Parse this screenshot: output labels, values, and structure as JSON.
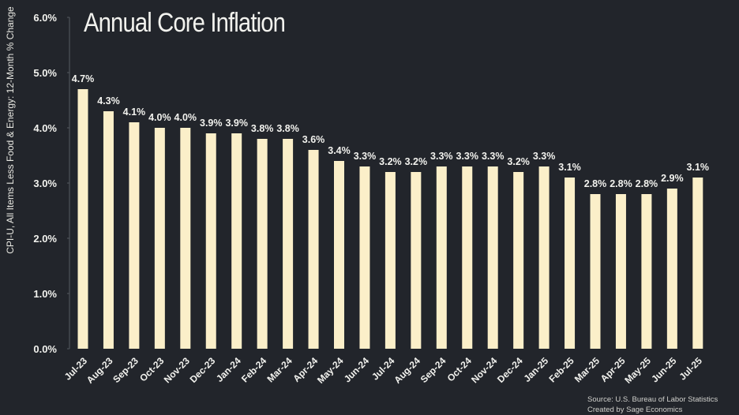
{
  "chart_data": {
    "type": "bar",
    "title": "Annual Core Inflation",
    "ylabel": "CPI-U, All Items Less Food & Energy: 12-Month % Change",
    "xlabel": "",
    "ylim": [
      0,
      6
    ],
    "yticks": [
      "0.0%",
      "1.0%",
      "2.0%",
      "3.0%",
      "4.0%",
      "5.0%",
      "6.0%"
    ],
    "grid": false,
    "categories": [
      "Jul-23",
      "Aug-23",
      "Sep-23",
      "Oct-23",
      "Nov-23",
      "Dec-23",
      "Jan-24",
      "Feb-24",
      "Mar-24",
      "Apr-24",
      "May-24",
      "Jun-24",
      "Jul-24",
      "Aug-24",
      "Sep-24",
      "Oct-24",
      "Nov-24",
      "Dec-24",
      "Jan-25",
      "Feb-25",
      "Mar-25",
      "Apr-25",
      "May-25",
      "Jun-25",
      "Jul-25"
    ],
    "values": [
      4.7,
      4.3,
      4.1,
      4.0,
      4.0,
      3.9,
      3.9,
      3.8,
      3.8,
      3.6,
      3.4,
      3.3,
      3.2,
      3.2,
      3.3,
      3.3,
      3.3,
      3.2,
      3.3,
      3.1,
      2.8,
      2.8,
      2.8,
      2.9,
      3.1
    ],
    "data_labels": [
      "4.7%",
      "4.3%",
      "4.1%",
      "4.0%",
      "4.0%",
      "3.9%",
      "3.9%",
      "3.8%",
      "3.8%",
      "3.6%",
      "3.4%",
      "3.3%",
      "3.2%",
      "3.2%",
      "3.3%",
      "3.3%",
      "3.3%",
      "3.2%",
      "3.3%",
      "3.1%",
      "2.8%",
      "2.8%",
      "2.8%",
      "2.9%",
      "3.1%"
    ],
    "colors": {
      "background": "#22252b",
      "bar": "#fbefc9",
      "text": "#f2f2ee"
    }
  },
  "footer": {
    "source": "Source: U.S. Bureau of Labor Statistics",
    "credit": "Created by Sage Economics"
  }
}
